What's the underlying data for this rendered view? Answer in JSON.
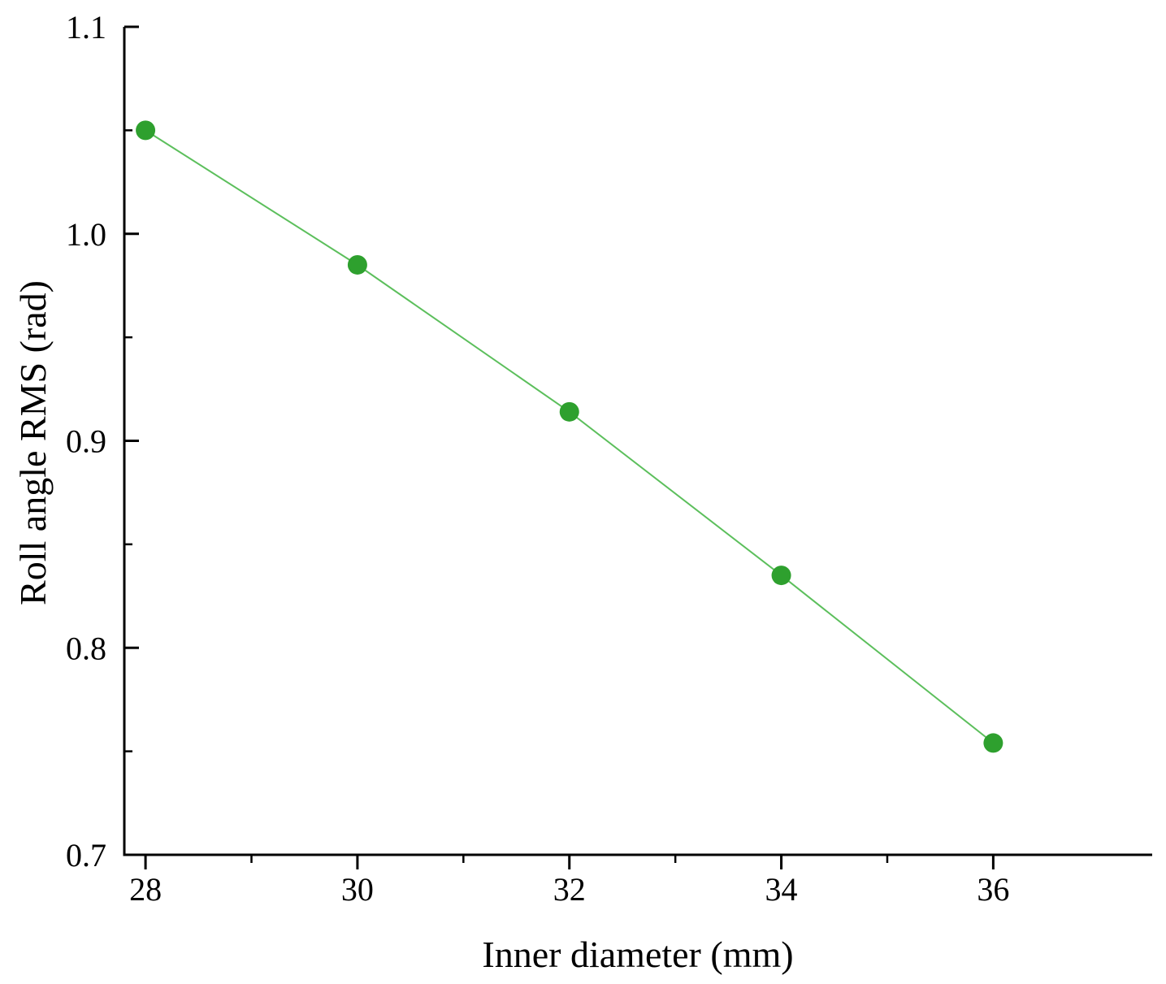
{
  "chart_data": {
    "type": "line",
    "title": "",
    "xlabel": "Inner diameter (mm)",
    "ylabel": "Roll angle RMS (rad)",
    "x": [
      28,
      30,
      32,
      34,
      36
    ],
    "series": [
      {
        "values": [
          1.05,
          0.985,
          0.914,
          0.835,
          0.754
        ],
        "color": "#2ea02e"
      }
    ],
    "xlim": [
      27.8,
      37.5
    ],
    "ylim": [
      0.7,
      1.1
    ],
    "x_ticks": [
      "28",
      "30",
      "32",
      "34",
      "36"
    ],
    "y_ticks": [
      "0.7",
      "0.8",
      "0.9",
      "1.0",
      "1.1"
    ],
    "grid": false,
    "legend": "none"
  }
}
